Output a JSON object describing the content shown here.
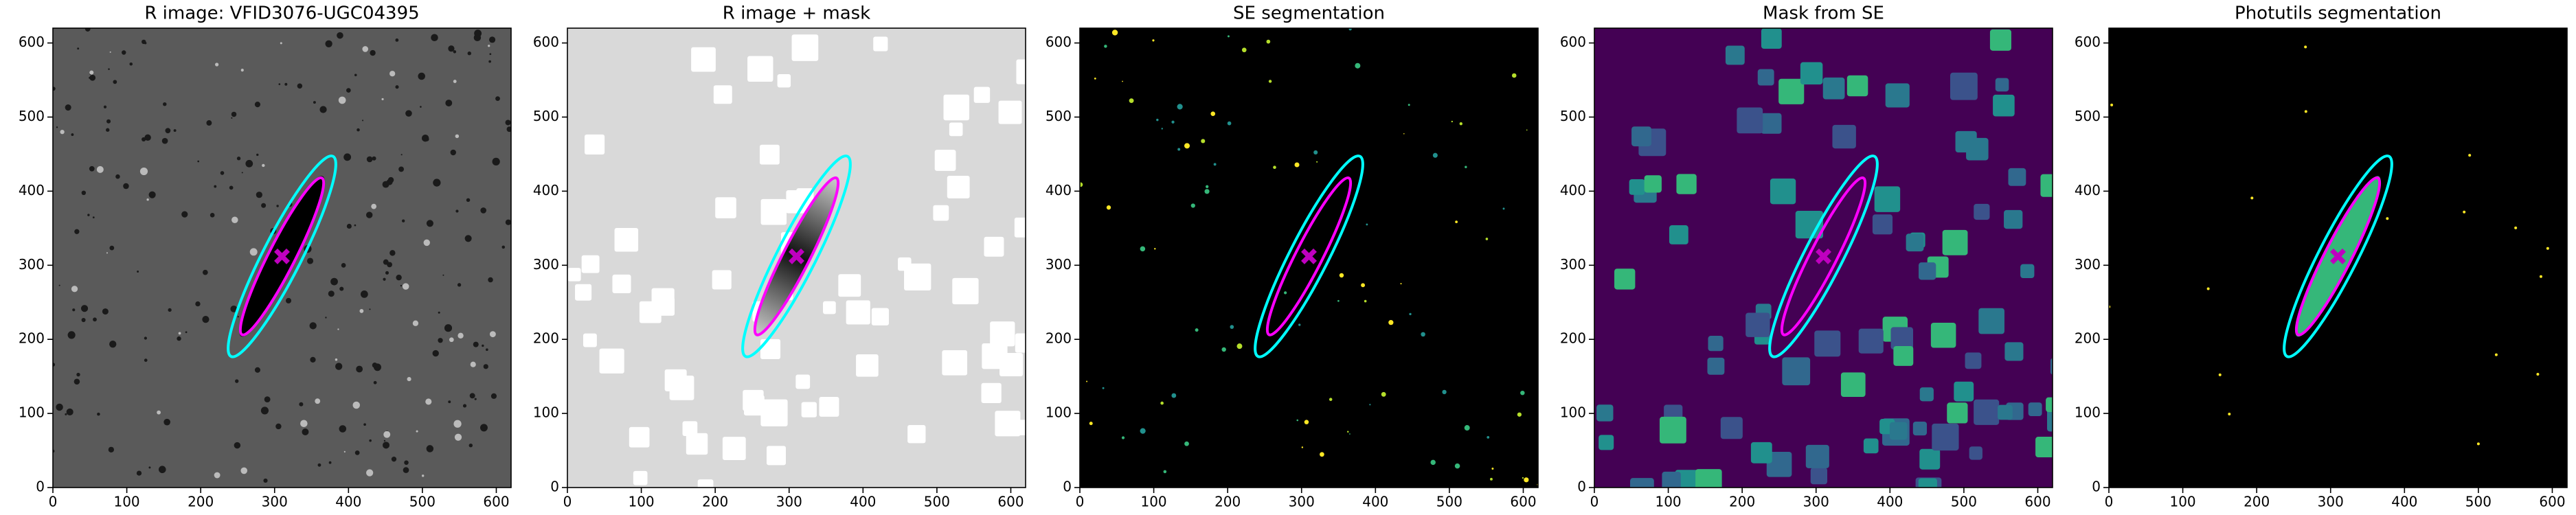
{
  "chart_data": [
    {
      "type": "image",
      "title": "R image: VFID3076-UGC04395",
      "background": "#5a5a5a",
      "xlim": [
        0,
        620
      ],
      "ylim": [
        0,
        620
      ],
      "xticks": [
        0,
        100,
        200,
        300,
        400,
        500,
        600
      ],
      "yticks": [
        0,
        100,
        200,
        300,
        400,
        500,
        600
      ],
      "ellipses": [
        {
          "color": "#00ffff",
          "x": 310,
          "y": 312,
          "a": 152,
          "b": 26,
          "angle": 63
        },
        {
          "color": "#ff00ff",
          "x": 310,
          "y": 312,
          "a": 119,
          "b": 18,
          "angle": 63
        }
      ],
      "marker": {
        "x": 310,
        "y": 312,
        "color": "#bf00bf"
      }
    },
    {
      "type": "image",
      "title": "R image + mask",
      "background": "#d9d9d9",
      "xlim": [
        0,
        620
      ],
      "ylim": [
        0,
        620
      ],
      "xticks": [
        0,
        100,
        200,
        300,
        400,
        500,
        600
      ],
      "yticks": [
        0,
        100,
        200,
        300,
        400,
        500,
        600
      ],
      "ellipses": [
        {
          "color": "#00ffff",
          "x": 310,
          "y": 312,
          "a": 152,
          "b": 26,
          "angle": 63
        },
        {
          "color": "#ff00ff",
          "x": 310,
          "y": 312,
          "a": 119,
          "b": 18,
          "angle": 63
        }
      ],
      "marker": {
        "x": 310,
        "y": 312,
        "color": "#bf00bf"
      }
    },
    {
      "type": "image",
      "title": "SE segmentation",
      "background": "#000000",
      "xlim": [
        0,
        620
      ],
      "ylim": [
        0,
        620
      ],
      "xticks": [
        0,
        100,
        200,
        300,
        400,
        500,
        600
      ],
      "yticks": [
        0,
        100,
        200,
        300,
        400,
        500,
        600
      ],
      "ellipses": [
        {
          "color": "#00ffff",
          "x": 310,
          "y": 312,
          "a": 152,
          "b": 26,
          "angle": 63
        },
        {
          "color": "#ff00ff",
          "x": 310,
          "y": 312,
          "a": 119,
          "b": 18,
          "angle": 63
        }
      ],
      "marker": {
        "x": 310,
        "y": 312,
        "color": "#bf00bf"
      }
    },
    {
      "type": "image",
      "title": "Mask from SE",
      "background": "#440154",
      "xlim": [
        0,
        620
      ],
      "ylim": [
        0,
        620
      ],
      "xticks": [
        0,
        100,
        200,
        300,
        400,
        500,
        600
      ],
      "yticks": [
        0,
        100,
        200,
        300,
        400,
        500,
        600
      ],
      "ellipses": [
        {
          "color": "#00ffff",
          "x": 310,
          "y": 312,
          "a": 152,
          "b": 26,
          "angle": 63
        },
        {
          "color": "#ff00ff",
          "x": 310,
          "y": 312,
          "a": 119,
          "b": 18,
          "angle": 63
        }
      ],
      "marker": {
        "x": 310,
        "y": 312,
        "color": "#bf00bf"
      }
    },
    {
      "type": "image",
      "title": "Photutils segmentation",
      "background": "#000000",
      "xlim": [
        0,
        620
      ],
      "ylim": [
        0,
        620
      ],
      "xticks": [
        0,
        100,
        200,
        300,
        400,
        500,
        600
      ],
      "yticks": [
        0,
        100,
        200,
        300,
        400,
        500,
        600
      ],
      "ellipses": [
        {
          "color": "#00ffff",
          "x": 310,
          "y": 312,
          "a": 152,
          "b": 26,
          "angle": 63
        },
        {
          "color": "#ff00ff",
          "x": 310,
          "y": 312,
          "a": 119,
          "b": 18,
          "angle": 63
        }
      ],
      "marker": {
        "x": 310,
        "y": 312,
        "color": "#bf00bf"
      }
    }
  ]
}
